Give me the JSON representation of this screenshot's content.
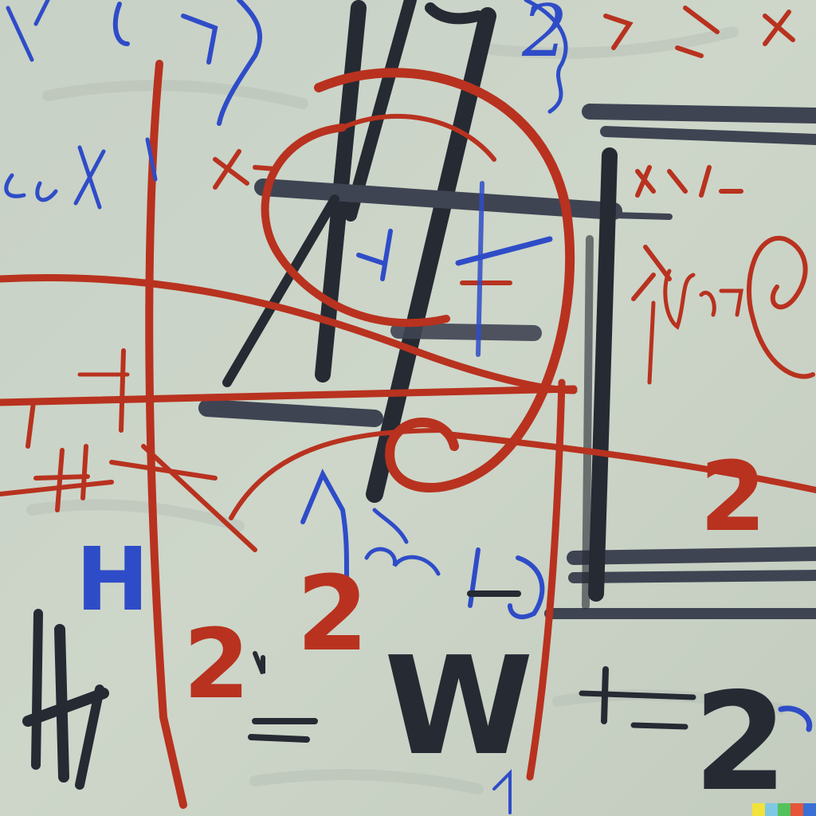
{
  "painting": {
    "colors": {
      "background": "#c9d2c4",
      "red": "#b8321f",
      "blue": "#2f4cc8",
      "black": "#262a33",
      "slate": "#3f4452"
    },
    "glyphs": {
      "big_w": "W",
      "big_two_bottom_right": "2",
      "red_two_center": "2",
      "red_two_left": "2",
      "red_two_right": "2",
      "red_two_upper": "2",
      "equals_sign": "=",
      "blue_h": "H",
      "black_h": "H"
    },
    "signature_color_bar": [
      "#f2e23c",
      "#7ec8e3",
      "#54c25a",
      "#e7543a",
      "#3a6fd6"
    ]
  }
}
